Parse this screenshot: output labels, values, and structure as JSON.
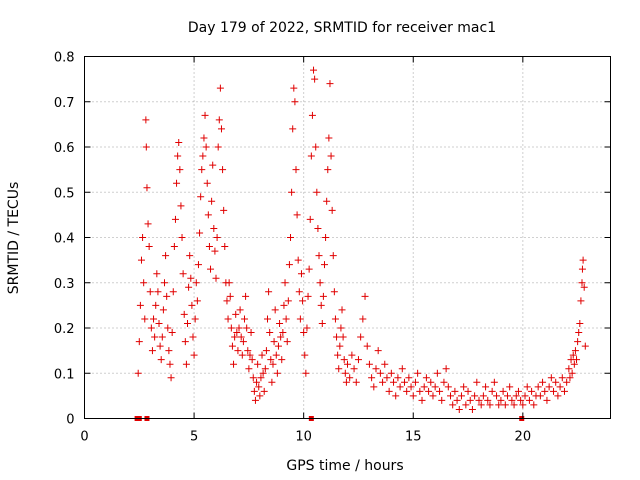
{
  "chart_data": {
    "type": "scatter",
    "title": "Day 179 of 2022, SRMTID for receiver mac1",
    "xlabel": "GPS time / hours",
    "ylabel": "SRMTID / TECUs",
    "xlim": [
      0,
      24
    ],
    "ylim": [
      0,
      0.8
    ],
    "xticks": [
      0,
      5,
      10,
      15,
      20
    ],
    "xtick_labels": [
      "0",
      "5",
      "10",
      "15",
      "20"
    ],
    "yticks": [
      0,
      0.1,
      0.2,
      0.3,
      0.4,
      0.5,
      0.6,
      0.7,
      0.8
    ],
    "ytick_labels": [
      "0",
      "0.1",
      "0.2",
      "0.3",
      "0.4",
      "0.5",
      "0.6",
      "0.7",
      "0.8"
    ],
    "grid": true,
    "marker": "+",
    "color": "#e00000",
    "zero_marks_x": [
      2.4,
      2.5,
      2.85,
      10.35,
      19.95
    ],
    "series": [
      {
        "name": "SRMTID",
        "points": [
          [
            2.45,
            0.1
          ],
          [
            2.5,
            0.17
          ],
          [
            2.55,
            0.25
          ],
          [
            2.6,
            0.35
          ],
          [
            2.65,
            0.4
          ],
          [
            2.7,
            0.3
          ],
          [
            2.75,
            0.22
          ],
          [
            2.8,
            0.66
          ],
          [
            2.82,
            0.6
          ],
          [
            2.85,
            0.51
          ],
          [
            2.9,
            0.43
          ],
          [
            2.95,
            0.38
          ],
          [
            3.0,
            0.28
          ],
          [
            3.05,
            0.2
          ],
          [
            3.1,
            0.15
          ],
          [
            3.15,
            0.22
          ],
          [
            3.2,
            0.18
          ],
          [
            3.25,
            0.25
          ],
          [
            3.3,
            0.32
          ],
          [
            3.35,
            0.28
          ],
          [
            3.4,
            0.21
          ],
          [
            3.45,
            0.16
          ],
          [
            3.5,
            0.13
          ],
          [
            3.55,
            0.18
          ],
          [
            3.6,
            0.24
          ],
          [
            3.65,
            0.3
          ],
          [
            3.7,
            0.36
          ],
          [
            3.75,
            0.27
          ],
          [
            3.8,
            0.2
          ],
          [
            3.85,
            0.15
          ],
          [
            3.9,
            0.12
          ],
          [
            3.95,
            0.09
          ],
          [
            4.0,
            0.19
          ],
          [
            4.05,
            0.28
          ],
          [
            4.1,
            0.38
          ],
          [
            4.15,
            0.44
          ],
          [
            4.2,
            0.52
          ],
          [
            4.25,
            0.58
          ],
          [
            4.3,
            0.61
          ],
          [
            4.35,
            0.55
          ],
          [
            4.4,
            0.47
          ],
          [
            4.45,
            0.4
          ],
          [
            4.5,
            0.32
          ],
          [
            4.55,
            0.23
          ],
          [
            4.6,
            0.17
          ],
          [
            4.65,
            0.12
          ],
          [
            4.7,
            0.21
          ],
          [
            4.75,
            0.29
          ],
          [
            4.8,
            0.36
          ],
          [
            4.85,
            0.31
          ],
          [
            4.9,
            0.25
          ],
          [
            4.95,
            0.18
          ],
          [
            5.0,
            0.14
          ],
          [
            5.05,
            0.22
          ],
          [
            5.1,
            0.3
          ],
          [
            5.15,
            0.26
          ],
          [
            5.2,
            0.34
          ],
          [
            5.25,
            0.41
          ],
          [
            5.3,
            0.49
          ],
          [
            5.35,
            0.55
          ],
          [
            5.4,
            0.58
          ],
          [
            5.45,
            0.62
          ],
          [
            5.5,
            0.67
          ],
          [
            5.55,
            0.6
          ],
          [
            5.6,
            0.52
          ],
          [
            5.65,
            0.45
          ],
          [
            5.7,
            0.38
          ],
          [
            5.75,
            0.33
          ],
          [
            5.8,
            0.48
          ],
          [
            5.85,
            0.56
          ],
          [
            5.9,
            0.42
          ],
          [
            5.95,
            0.37
          ],
          [
            6.0,
            0.31
          ],
          [
            6.05,
            0.4
          ],
          [
            6.1,
            0.6
          ],
          [
            6.15,
            0.66
          ],
          [
            6.2,
            0.73
          ],
          [
            6.25,
            0.64
          ],
          [
            6.3,
            0.55
          ],
          [
            6.35,
            0.46
          ],
          [
            6.4,
            0.38
          ],
          [
            6.45,
            0.3
          ],
          [
            6.5,
            0.26
          ],
          [
            6.55,
            0.22
          ],
          [
            6.6,
            0.3
          ],
          [
            6.65,
            0.27
          ],
          [
            6.7,
            0.2
          ],
          [
            6.75,
            0.16
          ],
          [
            6.8,
            0.12
          ],
          [
            6.85,
            0.18
          ],
          [
            6.9,
            0.23
          ],
          [
            6.95,
            0.19
          ],
          [
            7.0,
            0.15
          ],
          [
            7.05,
            0.2
          ],
          [
            7.1,
            0.24
          ],
          [
            7.15,
            0.18
          ],
          [
            7.2,
            0.14
          ],
          [
            7.25,
            0.17
          ],
          [
            7.3,
            0.22
          ],
          [
            7.35,
            0.27
          ],
          [
            7.4,
            0.2
          ],
          [
            7.45,
            0.15
          ],
          [
            7.5,
            0.11
          ],
          [
            7.55,
            0.14
          ],
          [
            7.6,
            0.19
          ],
          [
            7.65,
            0.13
          ],
          [
            7.7,
            0.09
          ],
          [
            7.75,
            0.06
          ],
          [
            7.8,
            0.04
          ],
          [
            7.85,
            0.08
          ],
          [
            7.9,
            0.12
          ],
          [
            7.95,
            0.07
          ],
          [
            8.0,
            0.05
          ],
          [
            8.05,
            0.09
          ],
          [
            8.1,
            0.14
          ],
          [
            8.15,
            0.1
          ],
          [
            8.2,
            0.06
          ],
          [
            8.25,
            0.11
          ],
          [
            8.3,
            0.15
          ],
          [
            8.35,
            0.22
          ],
          [
            8.4,
            0.28
          ],
          [
            8.45,
            0.19
          ],
          [
            8.5,
            0.13
          ],
          [
            8.55,
            0.08
          ],
          [
            8.6,
            0.12
          ],
          [
            8.65,
            0.17
          ],
          [
            8.7,
            0.24
          ],
          [
            8.75,
            0.14
          ],
          [
            8.8,
            0.1
          ],
          [
            8.85,
            0.16
          ],
          [
            8.9,
            0.21
          ],
          [
            8.95,
            0.18
          ],
          [
            9.0,
            0.13
          ],
          [
            9.05,
            0.19
          ],
          [
            9.1,
            0.25
          ],
          [
            9.15,
            0.3
          ],
          [
            9.2,
            0.22
          ],
          [
            9.25,
            0.17
          ],
          [
            9.3,
            0.26
          ],
          [
            9.35,
            0.34
          ],
          [
            9.4,
            0.4
          ],
          [
            9.45,
            0.5
          ],
          [
            9.5,
            0.64
          ],
          [
            9.55,
            0.73
          ],
          [
            9.6,
            0.7
          ],
          [
            9.65,
            0.55
          ],
          [
            9.7,
            0.45
          ],
          [
            9.75,
            0.35
          ],
          [
            9.8,
            0.28
          ],
          [
            9.85,
            0.22
          ],
          [
            9.9,
            0.32
          ],
          [
            9.95,
            0.26
          ],
          [
            10.0,
            0.19
          ],
          [
            10.05,
            0.14
          ],
          [
            10.1,
            0.1
          ],
          [
            10.15,
            0.2
          ],
          [
            10.2,
            0.27
          ],
          [
            10.25,
            0.33
          ],
          [
            10.3,
            0.44
          ],
          [
            10.35,
            0.58
          ],
          [
            10.4,
            0.67
          ],
          [
            10.45,
            0.77
          ],
          [
            10.5,
            0.75
          ],
          [
            10.55,
            0.6
          ],
          [
            10.6,
            0.5
          ],
          [
            10.65,
            0.42
          ],
          [
            10.7,
            0.36
          ],
          [
            10.75,
            0.3
          ],
          [
            10.8,
            0.25
          ],
          [
            10.85,
            0.21
          ],
          [
            10.9,
            0.27
          ],
          [
            10.95,
            0.34
          ],
          [
            11.0,
            0.4
          ],
          [
            11.05,
            0.48
          ],
          [
            11.1,
            0.55
          ],
          [
            11.15,
            0.62
          ],
          [
            11.2,
            0.74
          ],
          [
            11.25,
            0.58
          ],
          [
            11.3,
            0.46
          ],
          [
            11.35,
            0.36
          ],
          [
            11.4,
            0.28
          ],
          [
            11.45,
            0.22
          ],
          [
            11.5,
            0.18
          ],
          [
            11.55,
            0.14
          ],
          [
            11.6,
            0.11
          ],
          [
            11.65,
            0.16
          ],
          [
            11.7,
            0.2
          ],
          [
            11.75,
            0.24
          ],
          [
            11.8,
            0.18
          ],
          [
            11.85,
            0.13
          ],
          [
            11.9,
            0.1
          ],
          [
            11.95,
            0.08
          ],
          [
            12.0,
            0.12
          ],
          [
            12.1,
            0.09
          ],
          [
            12.2,
            0.14
          ],
          [
            12.3,
            0.11
          ],
          [
            12.4,
            0.08
          ],
          [
            12.5,
            0.13
          ],
          [
            12.6,
            0.18
          ],
          [
            12.7,
            0.22
          ],
          [
            12.8,
            0.27
          ],
          [
            12.9,
            0.16
          ],
          [
            13.0,
            0.12
          ],
          [
            13.1,
            0.09
          ],
          [
            13.2,
            0.07
          ],
          [
            13.3,
            0.11
          ],
          [
            13.4,
            0.15
          ],
          [
            13.5,
            0.1
          ],
          [
            13.6,
            0.08
          ],
          [
            13.7,
            0.12
          ],
          [
            13.8,
            0.09
          ],
          [
            13.9,
            0.06
          ],
          [
            14.0,
            0.1
          ],
          [
            14.1,
            0.08
          ],
          [
            14.2,
            0.05
          ],
          [
            14.3,
            0.09
          ],
          [
            14.4,
            0.07
          ],
          [
            14.5,
            0.11
          ],
          [
            14.6,
            0.08
          ],
          [
            14.7,
            0.06
          ],
          [
            14.8,
            0.09
          ],
          [
            14.9,
            0.07
          ],
          [
            15.0,
            0.05
          ],
          [
            15.1,
            0.08
          ],
          [
            15.2,
            0.1
          ],
          [
            15.3,
            0.06
          ],
          [
            15.4,
            0.04
          ],
          [
            15.5,
            0.07
          ],
          [
            15.6,
            0.09
          ],
          [
            15.7,
            0.06
          ],
          [
            15.8,
            0.08
          ],
          [
            15.9,
            0.05
          ],
          [
            16.0,
            0.07
          ],
          [
            16.1,
            0.1
          ],
          [
            16.2,
            0.06
          ],
          [
            16.3,
            0.04
          ],
          [
            16.4,
            0.08
          ],
          [
            16.5,
            0.11
          ],
          [
            16.6,
            0.07
          ],
          [
            16.7,
            0.05
          ],
          [
            16.8,
            0.03
          ],
          [
            16.9,
            0.06
          ],
          [
            17.0,
            0.04
          ],
          [
            17.1,
            0.02
          ],
          [
            17.2,
            0.05
          ],
          [
            17.3,
            0.07
          ],
          [
            17.4,
            0.03
          ],
          [
            17.5,
            0.06
          ],
          [
            17.6,
            0.04
          ],
          [
            17.7,
            0.02
          ],
          [
            17.8,
            0.05
          ],
          [
            17.9,
            0.08
          ],
          [
            18.0,
            0.04
          ],
          [
            18.1,
            0.03
          ],
          [
            18.2,
            0.05
          ],
          [
            18.3,
            0.07
          ],
          [
            18.4,
            0.04
          ],
          [
            18.5,
            0.03
          ],
          [
            18.6,
            0.06
          ],
          [
            18.7,
            0.08
          ],
          [
            18.8,
            0.05
          ],
          [
            18.9,
            0.03
          ],
          [
            19.0,
            0.04
          ],
          [
            19.1,
            0.06
          ],
          [
            19.2,
            0.03
          ],
          [
            19.3,
            0.05
          ],
          [
            19.4,
            0.07
          ],
          [
            19.5,
            0.04
          ],
          [
            19.6,
            0.03
          ],
          [
            19.7,
            0.05
          ],
          [
            19.8,
            0.06
          ],
          [
            19.9,
            0.04
          ],
          [
            20.0,
            0.03
          ],
          [
            20.1,
            0.05
          ],
          [
            20.2,
            0.07
          ],
          [
            20.3,
            0.04
          ],
          [
            20.4,
            0.06
          ],
          [
            20.5,
            0.03
          ],
          [
            20.6,
            0.05
          ],
          [
            20.7,
            0.07
          ],
          [
            20.8,
            0.05
          ],
          [
            20.9,
            0.08
          ],
          [
            21.0,
            0.06
          ],
          [
            21.1,
            0.04
          ],
          [
            21.2,
            0.07
          ],
          [
            21.3,
            0.09
          ],
          [
            21.4,
            0.06
          ],
          [
            21.5,
            0.08
          ],
          [
            21.6,
            0.05
          ],
          [
            21.7,
            0.07
          ],
          [
            21.8,
            0.09
          ],
          [
            21.9,
            0.06
          ],
          [
            22.0,
            0.08
          ],
          [
            22.1,
            0.11
          ],
          [
            22.15,
            0.09
          ],
          [
            22.2,
            0.13
          ],
          [
            22.25,
            0.1
          ],
          [
            22.3,
            0.14
          ],
          [
            22.35,
            0.12
          ],
          [
            22.4,
            0.15
          ],
          [
            22.45,
            0.13
          ],
          [
            22.5,
            0.17
          ],
          [
            22.55,
            0.19
          ],
          [
            22.6,
            0.21
          ],
          [
            22.65,
            0.26
          ],
          [
            22.7,
            0.3
          ],
          [
            22.72,
            0.33
          ],
          [
            22.75,
            0.35
          ],
          [
            22.8,
            0.29
          ],
          [
            22.85,
            0.16
          ]
        ]
      }
    ]
  }
}
